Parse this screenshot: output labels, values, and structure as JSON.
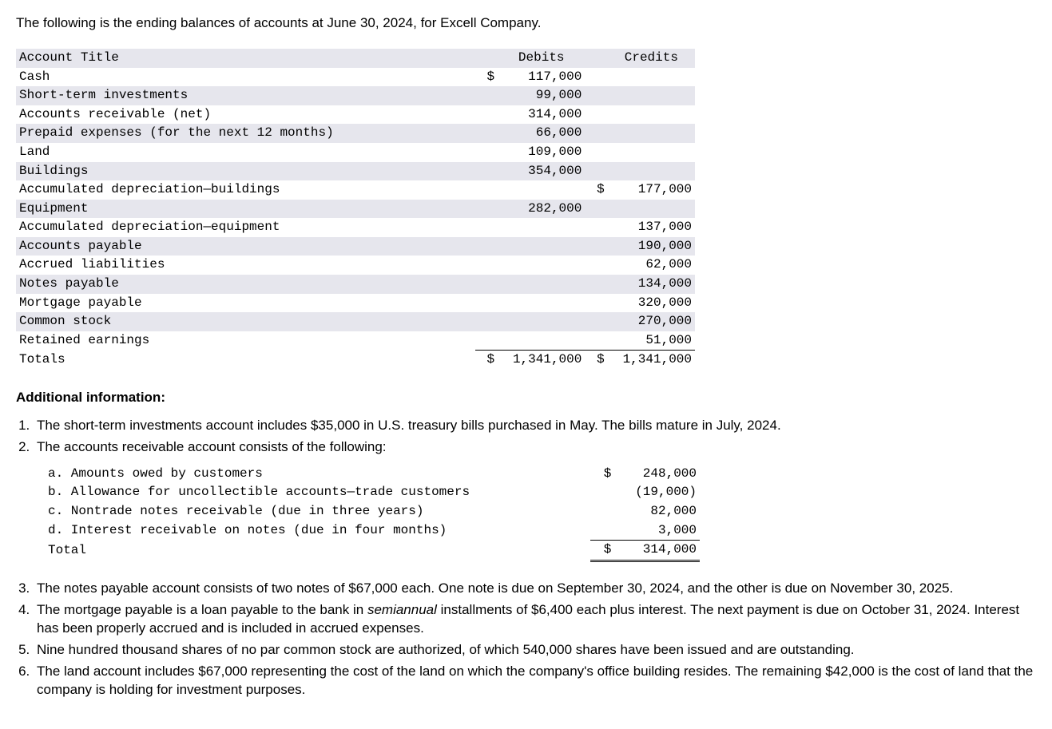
{
  "colors": {
    "zebra": "#e6e6ed",
    "text": "#000000",
    "bg": "#ffffff",
    "rule": "#000000"
  },
  "typography": {
    "body_font": "Arial",
    "mono_font": "Courier New",
    "body_size_pt": 13,
    "mono_size_pt": 12
  },
  "intro": "The following is the ending balances of accounts at June 30, 2024, for Excell Company.",
  "trial_balance": {
    "type": "table",
    "columns": [
      "Account Title",
      "Debits",
      "Credits"
    ],
    "rows": [
      {
        "title": "Cash",
        "debit_cur": "$",
        "debit": "117,000",
        "credit_cur": "",
        "credit": ""
      },
      {
        "title": "Short-term investments",
        "debit_cur": "",
        "debit": "99,000",
        "credit_cur": "",
        "credit": ""
      },
      {
        "title": "Accounts receivable (net)",
        "debit_cur": "",
        "debit": "314,000",
        "credit_cur": "",
        "credit": ""
      },
      {
        "title": "Prepaid expenses (for the next 12 months)",
        "debit_cur": "",
        "debit": "66,000",
        "credit_cur": "",
        "credit": ""
      },
      {
        "title": "Land",
        "debit_cur": "",
        "debit": "109,000",
        "credit_cur": "",
        "credit": ""
      },
      {
        "title": "Buildings",
        "debit_cur": "",
        "debit": "354,000",
        "credit_cur": "",
        "credit": ""
      },
      {
        "title": "Accumulated depreciation—buildings",
        "debit_cur": "",
        "debit": "",
        "credit_cur": "$",
        "credit": "177,000"
      },
      {
        "title": "Equipment",
        "debit_cur": "",
        "debit": "282,000",
        "credit_cur": "",
        "credit": ""
      },
      {
        "title": "Accumulated depreciation—equipment",
        "debit_cur": "",
        "debit": "",
        "credit_cur": "",
        "credit": "137,000"
      },
      {
        "title": "Accounts payable",
        "debit_cur": "",
        "debit": "",
        "credit_cur": "",
        "credit": "190,000"
      },
      {
        "title": "Accrued liabilities",
        "debit_cur": "",
        "debit": "",
        "credit_cur": "",
        "credit": "62,000"
      },
      {
        "title": "Notes payable",
        "debit_cur": "",
        "debit": "",
        "credit_cur": "",
        "credit": "134,000"
      },
      {
        "title": "Mortgage payable",
        "debit_cur": "",
        "debit": "",
        "credit_cur": "",
        "credit": "320,000"
      },
      {
        "title": "Common stock",
        "debit_cur": "",
        "debit": "",
        "credit_cur": "",
        "credit": "270,000"
      },
      {
        "title": "Retained earnings",
        "debit_cur": "",
        "debit": "",
        "credit_cur": "",
        "credit": "51,000"
      }
    ],
    "totals": {
      "label": "Totals",
      "debit_cur": "$",
      "debit": "1,341,000",
      "credit_cur": "$",
      "credit": "1,341,000"
    }
  },
  "additional_heading": "Additional information:",
  "info_1": "The short-term investments account includes $35,000 in U.S. treasury bills purchased in May. The bills mature in July, 2024.",
  "info_2": "The accounts receivable account consists of the following:",
  "ar_detail": {
    "rows": [
      {
        "label": "a. Amounts owed by customers",
        "cur": "$",
        "amount": "248,000"
      },
      {
        "label": "b. Allowance for uncollectible accounts—trade customers",
        "cur": "",
        "amount": "(19,000)"
      },
      {
        "label": "c. Nontrade notes receivable (due in three years)",
        "cur": "",
        "amount": "82,000"
      },
      {
        "label": "d. Interest receivable on notes (due in four months)",
        "cur": "",
        "amount": "3,000"
      }
    ],
    "total": {
      "label": "Total",
      "cur": "$",
      "amount": "314,000"
    }
  },
  "info_3": "The notes payable account consists of two notes of $67,000 each. One note is due on September 30, 2024, and the other is due on November 30, 2025.",
  "info_4_pre": "The mortgage payable is a loan payable to the bank in ",
  "info_4_italic": "semiannual",
  "info_4_post": " installments of $6,400 each plus interest. The next payment is due on October 31, 2024. Interest has been properly accrued and is included in accrued expenses.",
  "info_5": "Nine hundred thousand shares of no par common stock are authorized, of which 540,000 shares have been issued and are outstanding.",
  "info_6": "The land account includes $67,000 representing the cost of the land on which the company's office building resides. The remaining $42,000 is the cost of land that the company is holding for investment purposes."
}
